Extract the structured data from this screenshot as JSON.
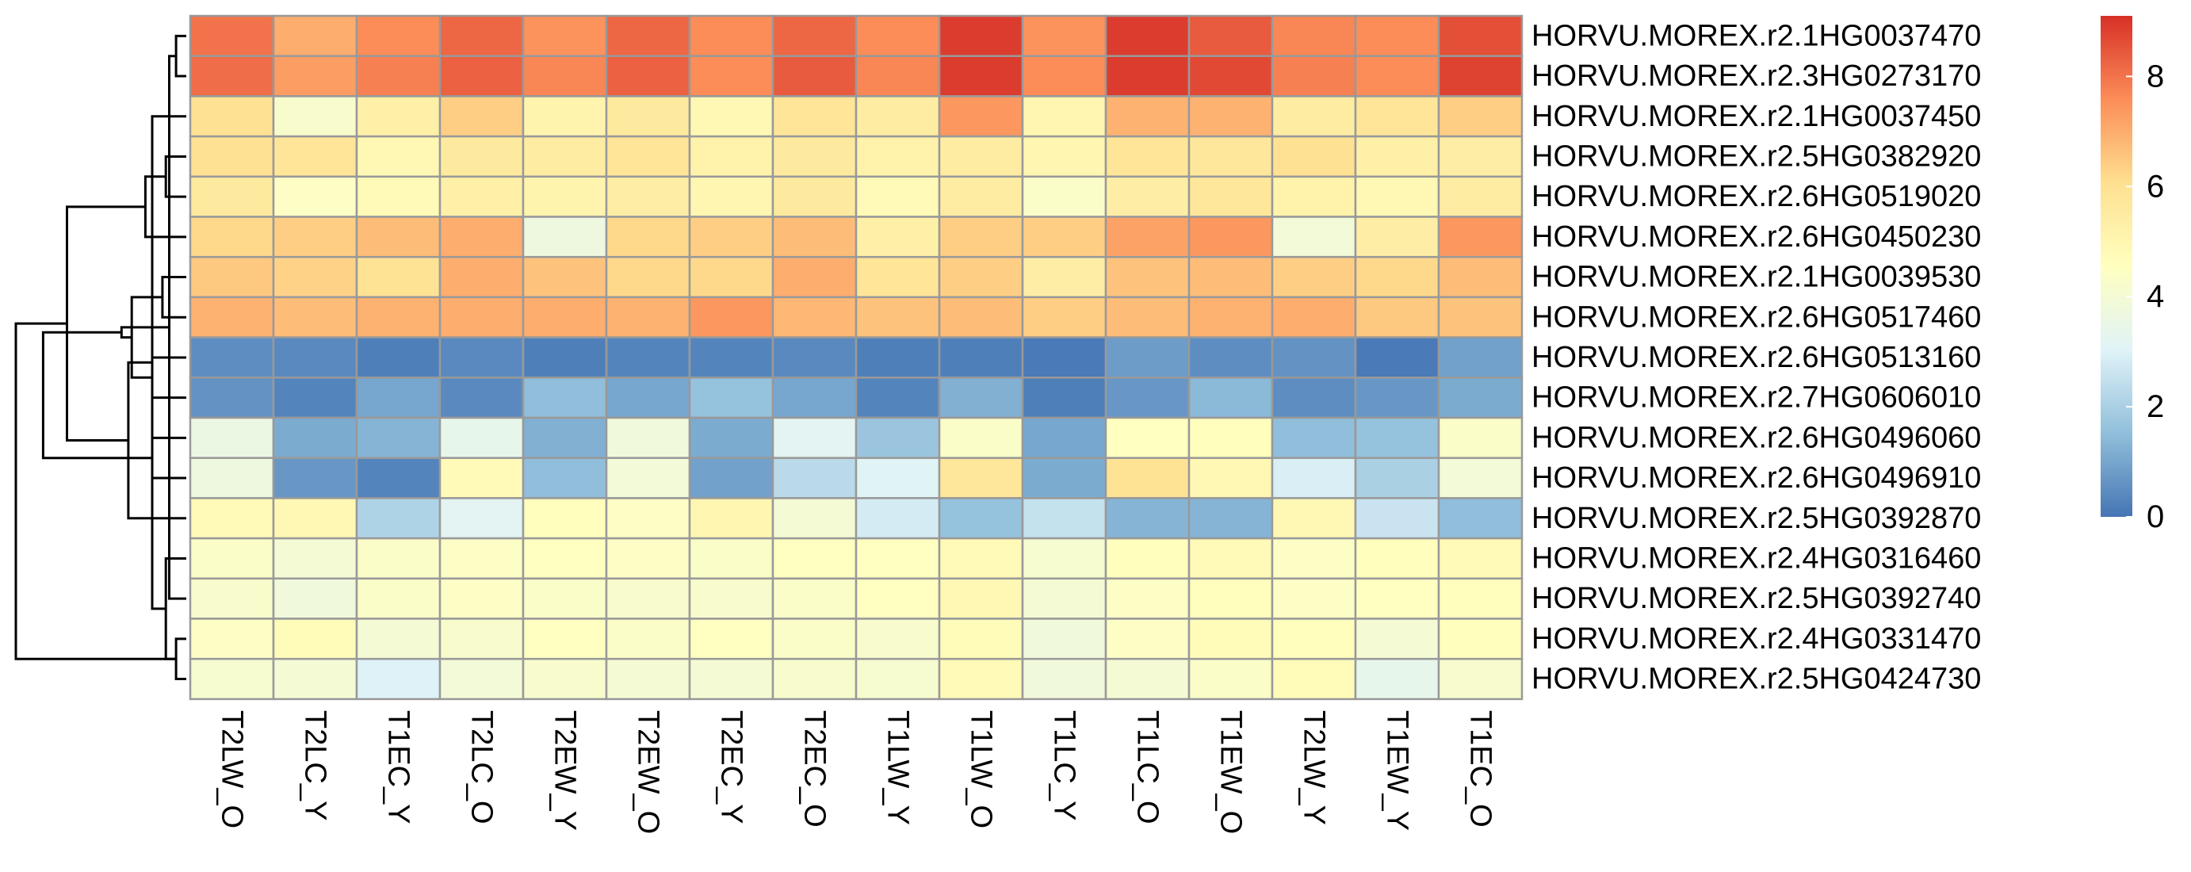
{
  "chart_data": {
    "type": "heatmap",
    "title": "",
    "xlabel": "",
    "ylabel": "",
    "columns": [
      "T2LW_O",
      "T2LC_Y",
      "T1EC_Y",
      "T2LC_O",
      "T2EW_Y",
      "T2EW_O",
      "T2EC_Y",
      "T2EC_O",
      "T1LW_Y",
      "T1LW_O",
      "T1LC_Y",
      "T1LC_O",
      "T1EW_O",
      "T2LW_Y",
      "T1EW_Y",
      "T1EC_O"
    ],
    "rows": [
      "HORVU.MOREX.r2.1HG0037470",
      "HORVU.MOREX.r2.3HG0273170",
      "HORVU.MOREX.r2.1HG0037450",
      "HORVU.MOREX.r2.5HG0382920",
      "HORVU.MOREX.r2.6HG0519020",
      "HORVU.MOREX.r2.6HG0450230",
      "HORVU.MOREX.r2.1HG0039530",
      "HORVU.MOREX.r2.6HG0517460",
      "HORVU.MOREX.r2.6HG0513160",
      "HORVU.MOREX.r2.7HG0606010",
      "HORVU.MOREX.r2.6HG0496060",
      "HORVU.MOREX.r2.6HG0496910",
      "HORVU.MOREX.r2.5HG0392870",
      "HORVU.MOREX.r2.4HG0316460",
      "HORVU.MOREX.r2.5HG0392740",
      "HORVU.MOREX.r2.4HG0331470",
      "HORVU.MOREX.r2.5HG0424730"
    ],
    "values": [
      [
        8.0,
        7.0,
        7.6,
        8.2,
        7.5,
        8.2,
        7.6,
        8.2,
        7.6,
        8.9,
        7.5,
        8.9,
        8.4,
        7.7,
        7.6,
        8.6
      ],
      [
        8.1,
        7.3,
        7.8,
        8.3,
        7.7,
        8.3,
        7.6,
        8.4,
        7.7,
        8.9,
        7.6,
        8.9,
        8.7,
        7.8,
        7.6,
        8.8
      ],
      [
        6.0,
        4.2,
        5.3,
        6.4,
        5.1,
        5.6,
        4.9,
        5.8,
        5.5,
        7.4,
        5.0,
        6.9,
        6.9,
        5.5,
        5.8,
        6.4
      ],
      [
        6.0,
        5.8,
        4.9,
        5.6,
        5.5,
        5.8,
        5.2,
        5.6,
        5.2,
        5.5,
        5.0,
        5.8,
        5.7,
        6.0,
        5.3,
        5.4
      ],
      [
        5.6,
        4.4,
        4.8,
        5.3,
        5.1,
        5.4,
        5.0,
        5.6,
        4.8,
        5.5,
        4.3,
        5.4,
        5.7,
        5.2,
        4.9,
        5.5
      ],
      [
        6.2,
        6.4,
        6.7,
        7.0,
        3.7,
        6.2,
        6.4,
        6.7,
        5.3,
        6.4,
        6.4,
        7.2,
        7.4,
        3.9,
        5.4,
        7.4
      ],
      [
        6.5,
        6.3,
        5.9,
        7.0,
        6.6,
        6.2,
        6.2,
        7.0,
        5.8,
        6.4,
        5.4,
        6.6,
        6.7,
        6.4,
        6.2,
        6.7
      ],
      [
        6.9,
        6.7,
        6.9,
        7.0,
        7.0,
        6.9,
        7.4,
        6.8,
        6.6,
        6.7,
        6.4,
        6.7,
        6.9,
        7.0,
        6.5,
        6.6
      ],
      [
        0.5,
        0.4,
        0.2,
        0.4,
        0.2,
        0.3,
        0.3,
        0.4,
        0.2,
        0.2,
        0.1,
        0.8,
        0.5,
        0.6,
        0.1,
        0.9
      ],
      [
        0.6,
        0.3,
        1.0,
        0.4,
        1.5,
        1.0,
        1.6,
        1.0,
        0.3,
        1.2,
        0.2,
        0.7,
        1.4,
        0.5,
        0.7,
        1.1
      ],
      [
        3.6,
        1.1,
        1.3,
        3.4,
        1.2,
        3.8,
        1.1,
        3.2,
        1.7,
        4.3,
        1.0,
        4.5,
        4.6,
        1.5,
        1.6,
        4.3
      ],
      [
        3.7,
        0.7,
        0.3,
        4.8,
        1.5,
        3.9,
        0.9,
        2.3,
        3.1,
        5.7,
        1.1,
        5.9,
        4.9,
        2.9,
        2.0,
        3.9
      ],
      [
        4.8,
        4.9,
        2.1,
        3.2,
        4.6,
        4.4,
        5.0,
        4.0,
        2.8,
        1.6,
        2.5,
        1.3,
        1.3,
        4.9,
        2.6,
        1.5
      ],
      [
        4.3,
        4.0,
        4.3,
        4.4,
        4.5,
        4.4,
        4.3,
        4.5,
        4.5,
        4.8,
        4.1,
        4.6,
        4.8,
        4.4,
        4.6,
        4.8
      ],
      [
        4.2,
        3.8,
        4.3,
        4.4,
        4.3,
        4.2,
        4.2,
        4.3,
        4.5,
        4.9,
        4.0,
        4.4,
        4.6,
        4.4,
        4.5,
        4.6
      ],
      [
        4.4,
        4.7,
        4.0,
        4.2,
        4.5,
        4.3,
        4.5,
        4.3,
        4.2,
        4.7,
        3.8,
        4.4,
        4.7,
        4.6,
        4.0,
        4.6
      ],
      [
        4.1,
        4.0,
        3.0,
        3.9,
        4.2,
        4.0,
        4.0,
        4.2,
        4.1,
        4.8,
        3.8,
        4.0,
        4.3,
        4.7,
        3.4,
        4.2
      ]
    ],
    "legend": {
      "ticks": [
        0,
        2,
        4,
        6,
        8
      ],
      "min": 0,
      "max": 9.1
    },
    "colors": [
      "#4575b4",
      "#91bfdb",
      "#e0f3f8",
      "#ffffbf",
      "#fee090",
      "#fc8d59",
      "#d73027"
    ],
    "cell_border": "#999999",
    "row_dendrogram": {
      "leaf_order": [
        0,
        1,
        2,
        3,
        4,
        5,
        6,
        7,
        8,
        9,
        10,
        11,
        12,
        13,
        14,
        15,
        16
      ],
      "merges": [
        [
          0,
          1,
          0.3
        ],
        [
          15,
          16,
          0.3
        ],
        [
          14,
          17,
          0.5
        ],
        [
          13,
          18,
          0.6
        ],
        [
          3,
          4,
          0.6
        ],
        [
          6,
          7,
          0.7
        ],
        [
          2,
          20,
          1.0
        ],
        [
          10,
          11,
          1.0
        ],
        [
          8,
          9,
          1.0
        ],
        [
          5,
          21,
          1.2
        ],
        [
          22,
          25,
          1.6
        ],
        [
          12,
          23,
          1.7
        ],
        [
          19,
          27,
          1.9
        ],
        [
          26,
          28,
          3.5
        ],
        [
          24,
          29,
          4.2
        ],
        [
          18,
          30,
          5.0
        ]
      ]
    }
  }
}
